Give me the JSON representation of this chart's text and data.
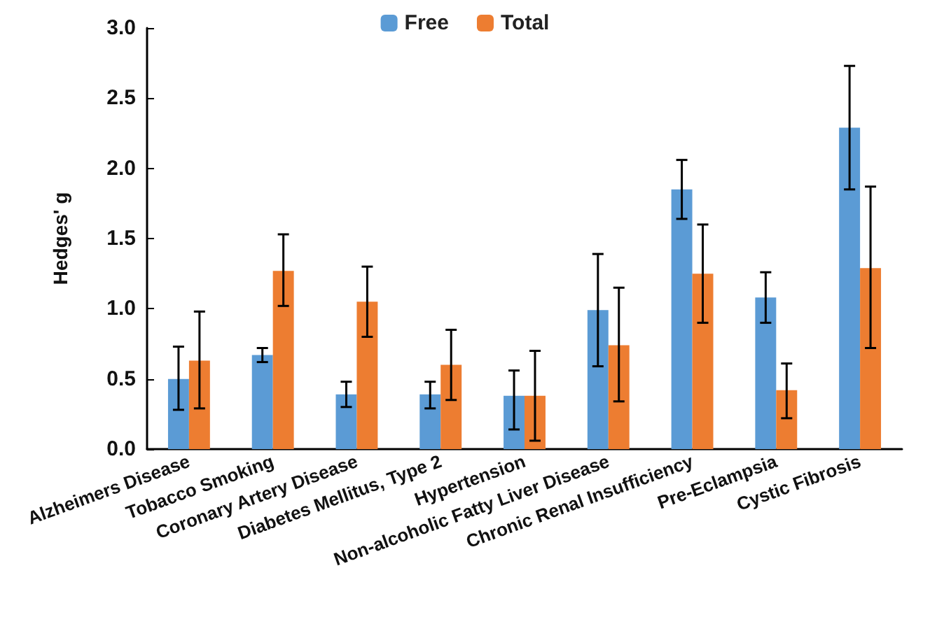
{
  "chart_data": {
    "type": "bar",
    "ylabel": "Hedges' g",
    "categories": [
      "Alzheimers Disease",
      "Tobacco Smoking",
      "Coronary Artery Disease",
      "Diabetes Mellitus, Type 2",
      "Hypertension",
      "Non-alcoholic Fatty Liver Disease",
      "Chronic Renal Insufficiency",
      "Pre-Eclampsia",
      "Cystic Fibrosis"
    ],
    "series": [
      {
        "name": "Free",
        "color": "#5b9bd5",
        "values": [
          0.5,
          0.67,
          0.39,
          0.39,
          0.38,
          0.99,
          1.85,
          1.08,
          2.29
        ],
        "errors": [
          [
            0.28,
            0.73
          ],
          [
            0.62,
            0.72
          ],
          [
            0.3,
            0.48
          ],
          [
            0.29,
            0.48
          ],
          [
            0.14,
            0.56
          ],
          [
            0.59,
            1.39
          ],
          [
            1.64,
            2.06
          ],
          [
            0.9,
            1.26
          ],
          [
            1.85,
            2.73
          ]
        ]
      },
      {
        "name": "Total",
        "color": "#ed7d31",
        "values": [
          0.63,
          1.27,
          1.05,
          0.6,
          0.38,
          0.74,
          1.25,
          0.42,
          1.29
        ],
        "errors": [
          [
            0.29,
            0.98
          ],
          [
            1.02,
            1.53
          ],
          [
            0.8,
            1.3
          ],
          [
            0.35,
            0.85
          ],
          [
            0.06,
            0.7
          ],
          [
            0.34,
            1.15
          ],
          [
            0.9,
            1.6
          ],
          [
            0.22,
            0.61
          ],
          [
            0.72,
            1.87
          ]
        ]
      }
    ],
    "ylim": [
      0,
      3
    ],
    "yticks": [
      {
        "value": 0,
        "label": "0.0"
      },
      0.5,
      {
        "value": 1,
        "label": "1.0"
      },
      1.5,
      {
        "value": 2,
        "label": "2.0"
      },
      2.5,
      {
        "value": 3,
        "label": "3.0"
      }
    ],
    "grid": false,
    "legend": "top"
  }
}
